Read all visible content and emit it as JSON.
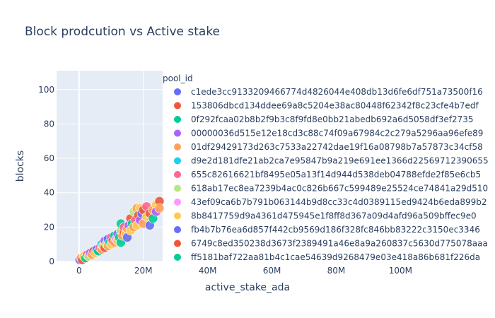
{
  "chart_data": {
    "type": "scatter",
    "title": "Block prodcution vs Active stake",
    "xlabel": "active_stake_ada",
    "ylabel": "blocks",
    "x_ticks": [
      {
        "value": 0,
        "label": "0"
      },
      {
        "value": 20000000,
        "label": "20M"
      },
      {
        "value": 40000000,
        "label": "40M"
      },
      {
        "value": 60000000,
        "label": "60M"
      },
      {
        "value": 80000000,
        "label": "80M"
      },
      {
        "value": 100000000,
        "label": "100M"
      }
    ],
    "y_ticks": [
      {
        "value": 0,
        "label": "0"
      },
      {
        "value": 20,
        "label": "20"
      },
      {
        "value": 40,
        "label": "40"
      },
      {
        "value": 60,
        "label": "60"
      },
      {
        "value": 80,
        "label": "80"
      },
      {
        "value": 100,
        "label": "100"
      }
    ],
    "xlim": [
      -7000000,
      26000000
    ],
    "ylim": [
      0,
      111
    ],
    "grid": true,
    "legend": {
      "title": "pool_id",
      "placement": "right",
      "entries": [
        {
          "name": "c1ede3cc9133209466774d4826044e408db13d6fe6df751a73500f16",
          "color": "#636efa"
        },
        {
          "name": "153806dbcd134ddee69a8c5204e38ac80448f62342f8c23cfe4b7edf",
          "color": "#EF553B"
        },
        {
          "name": "0f292fcaa02b8b2f9b3c8f9fd8e0bb21abedb692a6d5058df3ef2735",
          "color": "#00cc96"
        },
        {
          "name": "00000036d515e12e18cd3c88c74f09a67984c2c279a5296aa96efe89",
          "color": "#ab63fa"
        },
        {
          "name": "01df29429173d263c7533a22742dae19f16a08798b7a57873c34cf58",
          "color": "#FFA15A"
        },
        {
          "name": "d9e2d181dfe21ab2ca7e95847b9a219e691ee1366d22569712390655",
          "color": "#19d3f3"
        },
        {
          "name": "655c82616621bf8495e05a13f14d944d538deb04788efde2f85e6cb5",
          "color": "#FF6692"
        },
        {
          "name": "618ab17ec8ea7239b4ac0c826b667c599489e25524ce74841a29d510",
          "color": "#B6E880"
        },
        {
          "name": "43ef09ca6b7b791b063144b9d8cc33c4d0389115ed9424b6eda899b2",
          "color": "#FF97FF"
        },
        {
          "name": "8b8417759d9a4361d475945e1f8ff8d367a09d4afd96a509bffec9e0",
          "color": "#FECB52"
        },
        {
          "name": "fb4b7b76ea6d857f442cb9569d186f328fc846bb83222c3150ec3346",
          "color": "#636efa"
        },
        {
          "name": "6749c8ed350238d3673f2389491a46e8a9a260837c5630d775078aaa",
          "color": "#EF553B"
        },
        {
          "name": "ff5181baf722aa81b4c1cae54639d9268479e03e418a86b681f226da",
          "color": "#00cc96"
        }
      ]
    },
    "points": [
      {
        "x": 200000,
        "y": 1,
        "series": 0
      },
      {
        "x": 600000,
        "y": 2,
        "series": 4
      },
      {
        "x": 1000000,
        "y": 1,
        "series": 1
      },
      {
        "x": 1500000,
        "y": 3,
        "series": 9
      },
      {
        "x": 2000000,
        "y": 2,
        "series": 2
      },
      {
        "x": 2500000,
        "y": 4,
        "series": 6
      },
      {
        "x": 3000000,
        "y": 3,
        "series": 7
      },
      {
        "x": 3500000,
        "y": 5,
        "series": 3
      },
      {
        "x": 4000000,
        "y": 4,
        "series": 4
      },
      {
        "x": 4500000,
        "y": 6,
        "series": 1
      },
      {
        "x": 5000000,
        "y": 5,
        "series": 9
      },
      {
        "x": 5500000,
        "y": 7,
        "series": 0
      },
      {
        "x": 6000000,
        "y": 6,
        "series": 2
      },
      {
        "x": 6500000,
        "y": 8,
        "series": 6
      },
      {
        "x": 7000000,
        "y": 7,
        "series": 4
      },
      {
        "x": 7000000,
        "y": 10,
        "series": 5
      },
      {
        "x": 7500000,
        "y": 9,
        "series": 9
      },
      {
        "x": 8000000,
        "y": 8,
        "series": 1
      },
      {
        "x": 8000000,
        "y": 12,
        "series": 3
      },
      {
        "x": 8500000,
        "y": 10,
        "series": 7
      },
      {
        "x": 9000000,
        "y": 9,
        "series": 4
      },
      {
        "x": 9000000,
        "y": 13,
        "series": 0
      },
      {
        "x": 9500000,
        "y": 11,
        "series": 2
      },
      {
        "x": 10000000,
        "y": 10,
        "series": 9
      },
      {
        "x": 10000000,
        "y": 14,
        "series": 6
      },
      {
        "x": 10500000,
        "y": 12,
        "series": 1
      },
      {
        "x": 11000000,
        "y": 11,
        "series": 4
      },
      {
        "x": 11000000,
        "y": 15,
        "series": 2
      },
      {
        "x": 11500000,
        "y": 13,
        "series": 8
      },
      {
        "x": 12000000,
        "y": 12,
        "series": 9
      },
      {
        "x": 12000000,
        "y": 16,
        "series": 3
      },
      {
        "x": 12500000,
        "y": 14,
        "series": 2
      },
      {
        "x": 13000000,
        "y": 11,
        "series": 2
      },
      {
        "x": 13000000,
        "y": 18,
        "series": 7
      },
      {
        "x": 13000000,
        "y": 22,
        "series": 2
      },
      {
        "x": 13500000,
        "y": 15,
        "series": 4
      },
      {
        "x": 14000000,
        "y": 17,
        "series": 1
      },
      {
        "x": 14000000,
        "y": 20,
        "series": 6
      },
      {
        "x": 14500000,
        "y": 16,
        "series": 9
      },
      {
        "x": 15000000,
        "y": 19,
        "series": 4
      },
      {
        "x": 15000000,
        "y": 14,
        "series": 0
      },
      {
        "x": 15500000,
        "y": 21,
        "series": 3
      },
      {
        "x": 16000000,
        "y": 18,
        "series": 9
      },
      {
        "x": 16000000,
        "y": 25,
        "series": 1
      },
      {
        "x": 16500000,
        "y": 22,
        "series": 2
      },
      {
        "x": 17000000,
        "y": 29,
        "series": 7
      },
      {
        "x": 17000000,
        "y": 20,
        "series": 4
      },
      {
        "x": 17500000,
        "y": 24,
        "series": 6
      },
      {
        "x": 18000000,
        "y": 31,
        "series": 4
      },
      {
        "x": 18000000,
        "y": 21,
        "series": 9
      },
      {
        "x": 18500000,
        "y": 27,
        "series": 1
      },
      {
        "x": 19000000,
        "y": 24,
        "series": 3
      },
      {
        "x": 19000000,
        "y": 31,
        "series": 9
      },
      {
        "x": 19500000,
        "y": 28,
        "series": 0
      },
      {
        "x": 20000000,
        "y": 22,
        "series": 4
      },
      {
        "x": 20000000,
        "y": 30,
        "series": 1
      },
      {
        "x": 21000000,
        "y": 26,
        "series": 9
      },
      {
        "x": 21000000,
        "y": 32,
        "series": 6
      },
      {
        "x": 22000000,
        "y": 28,
        "series": 1
      },
      {
        "x": 22000000,
        "y": 21,
        "series": 0
      },
      {
        "x": 23000000,
        "y": 30,
        "series": 4
      },
      {
        "x": 23000000,
        "y": 25,
        "series": 2
      },
      {
        "x": 24000000,
        "y": 33,
        "series": 9
      },
      {
        "x": 24000000,
        "y": 29,
        "series": 3
      },
      {
        "x": 25000000,
        "y": 35,
        "series": 1
      },
      {
        "x": 25000000,
        "y": 31,
        "series": 4
      }
    ]
  }
}
